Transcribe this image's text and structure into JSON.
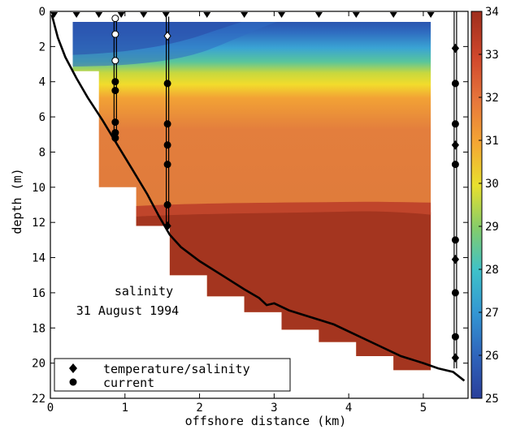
{
  "chart_data": {
    "type": "heatmap",
    "annotations": [
      "salinity",
      "31 August 1994"
    ],
    "xlabel": "offshore distance (km)",
    "ylabel": "depth (m)",
    "xlim": [
      0,
      5.6
    ],
    "ylim": [
      0,
      22
    ],
    "y_inverted": true,
    "x_ticks": [
      "0",
      "1",
      "2",
      "3",
      "4",
      "5"
    ],
    "y_ticks": [
      "0",
      "2",
      "4",
      "6",
      "8",
      "10",
      "12",
      "14",
      "16",
      "18",
      "20",
      "22"
    ],
    "colorbar": {
      "range": [
        25,
        34
      ],
      "ticks": [
        "25",
        "26",
        "27",
        "28",
        "29",
        "30",
        "31",
        "32",
        "33",
        "34"
      ],
      "colors": [
        "#2a4aa3",
        "#2f83c9",
        "#36b4d8",
        "#54c79d",
        "#a7d24c",
        "#f0e02e",
        "#f5a334",
        "#e77a3e",
        "#d24e2e",
        "#a8321f"
      ]
    },
    "legend": {
      "placement": "bottom-left",
      "entries": [
        {
          "marker": "diamond",
          "label": "temperature/salinity"
        },
        {
          "marker": "circle",
          "label": "current"
        }
      ]
    },
    "surface_station_markers_x": [
      0.05,
      0.35,
      0.65,
      0.95,
      1.25,
      1.55,
      2.1,
      2.6,
      3.1,
      3.6,
      4.1,
      4.6,
      5.1
    ],
    "bathymetry": {
      "x": [
        0.02,
        0.1,
        0.2,
        0.35,
        0.5,
        0.7,
        0.9,
        1.1,
        1.3,
        1.45,
        1.6,
        1.75,
        2.0,
        2.3,
        2.6,
        2.8,
        2.9,
        3.0,
        3.2,
        3.5,
        3.8,
        4.1,
        4.4,
        4.7,
        5.0,
        5.2,
        5.4,
        5.55
      ],
      "depth": [
        0.2,
        1.5,
        2.6,
        3.8,
        4.9,
        6.2,
        7.6,
        9.0,
        10.4,
        11.6,
        12.7,
        13.4,
        14.2,
        15.0,
        15.8,
        16.3,
        16.7,
        16.6,
        17.0,
        17.4,
        17.8,
        18.4,
        19.0,
        19.6,
        20.0,
        20.3,
        20.5,
        21.0
      ]
    },
    "section_outline": {
      "x": [
        0.3,
        5.1,
        5.1,
        4.6,
        4.6,
        4.1,
        4.1,
        3.6,
        3.6,
        3.1,
        3.1,
        2.6,
        2.6,
        2.1,
        2.1,
        1.6,
        1.6,
        1.15,
        1.15,
        0.65,
        0.65,
        0.3
      ],
      "depth": [
        0.6,
        0.6,
        20.4,
        20.4,
        19.6,
        19.6,
        18.8,
        18.8,
        18.1,
        18.1,
        17.1,
        17.1,
        16.2,
        16.2,
        15.0,
        15.0,
        12.2,
        12.2,
        10.0,
        10.0,
        3.4,
        3.4
      ]
    },
    "moorings": [
      {
        "x": 0.87,
        "top": 0.3,
        "bottom": 7.4,
        "instruments": [
          {
            "type": "circle",
            "fill": "white",
            "depth": 0.4
          },
          {
            "type": "circle",
            "fill": "white",
            "depth": 1.3
          },
          {
            "type": "circle",
            "fill": "white",
            "depth": 2.8
          },
          {
            "type": "circle",
            "fill": "black",
            "depth": 4.0
          },
          {
            "type": "circle",
            "fill": "black",
            "depth": 4.5
          },
          {
            "type": "circle",
            "fill": "black",
            "depth": 6.3
          },
          {
            "type": "circle",
            "fill": "black",
            "depth": 6.9
          },
          {
            "type": "circle",
            "fill": "black",
            "depth": 7.2
          }
        ]
      },
      {
        "x": 1.57,
        "top": 0.3,
        "bottom": 12.3,
        "instruments": [
          {
            "type": "diamond",
            "fill": "white",
            "depth": 1.4
          },
          {
            "type": "circle",
            "fill": "black",
            "depth": 4.1
          },
          {
            "type": "circle",
            "fill": "black",
            "depth": 6.4
          },
          {
            "type": "circle",
            "fill": "black",
            "depth": 7.6
          },
          {
            "type": "circle",
            "fill": "black",
            "depth": 8.7
          },
          {
            "type": "circle",
            "fill": "black",
            "depth": 11.0
          },
          {
            "type": "diamond",
            "fill": "black",
            "depth": 12.2
          }
        ]
      },
      {
        "x": 5.43,
        "top": 0.0,
        "bottom": 20.3,
        "instruments": [
          {
            "type": "diamond",
            "fill": "black",
            "depth": 2.1
          },
          {
            "type": "circle",
            "fill": "black",
            "depth": 4.1
          },
          {
            "type": "circle",
            "fill": "black",
            "depth": 6.4
          },
          {
            "type": "diamond",
            "fill": "black",
            "depth": 7.6
          },
          {
            "type": "circle",
            "fill": "black",
            "depth": 8.7
          },
          {
            "type": "circle",
            "fill": "black",
            "depth": 13.0
          },
          {
            "type": "diamond",
            "fill": "black",
            "depth": 14.1
          },
          {
            "type": "circle",
            "fill": "black",
            "depth": 16.0
          },
          {
            "type": "circle",
            "fill": "black",
            "depth": 18.5
          },
          {
            "type": "diamond",
            "fill": "black",
            "depth": 19.7
          }
        ]
      }
    ]
  }
}
